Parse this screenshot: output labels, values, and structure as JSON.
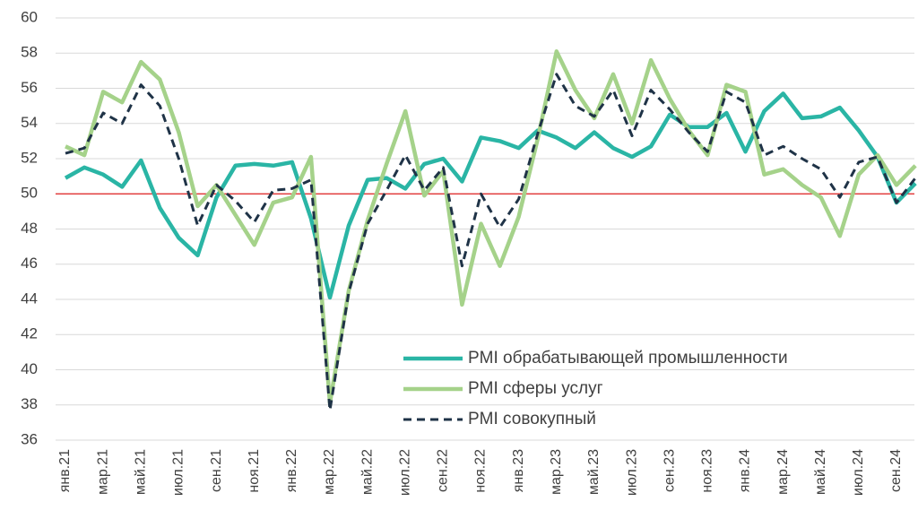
{
  "chart_data": {
    "type": "line",
    "categories": [
      "янв.21",
      null,
      "мар.21",
      null,
      "май.21",
      null,
      "июл.21",
      null,
      "сен.21",
      null,
      "ноя.21",
      null,
      "янв.22",
      null,
      "мар.22",
      null,
      "май.22",
      null,
      "июл.22",
      null,
      "сен.22",
      null,
      "ноя.22",
      null,
      "янв.23",
      null,
      "мар.23",
      null,
      "май.23",
      null,
      "июл.23",
      null,
      "сен.23",
      null,
      "ноя.23",
      null,
      "янв.24",
      null,
      "мар.24",
      null,
      "май.24",
      null,
      "июл.24",
      null,
      "сен.24",
      null
    ],
    "series": [
      {
        "name": "PMI обрабатывающей промышленности",
        "color": "#2ab5a5",
        "dash": false,
        "values": [
          50.9,
          51.5,
          51.1,
          50.4,
          51.9,
          49.2,
          47.5,
          46.5,
          49.8,
          51.6,
          51.7,
          51.6,
          51.8,
          48.6,
          44.1,
          48.2,
          50.8,
          50.9,
          50.3,
          51.7,
          52.0,
          50.7,
          53.2,
          53.0,
          52.6,
          53.6,
          53.2,
          52.6,
          53.5,
          52.6,
          52.1,
          52.7,
          54.5,
          53.8,
          53.8,
          54.6,
          52.4,
          54.7,
          55.7,
          54.3,
          54.4,
          54.9,
          53.6,
          52.1,
          49.5,
          50.6
        ]
      },
      {
        "name": "PMI сферы услуг",
        "color": "#a5d28a",
        "dash": false,
        "values": [
          52.7,
          52.2,
          55.8,
          55.2,
          57.5,
          56.5,
          53.5,
          49.3,
          50.5,
          48.8,
          47.1,
          49.5,
          49.8,
          52.1,
          38.1,
          44.5,
          48.5,
          51.7,
          54.7,
          49.9,
          51.3,
          43.7,
          48.3,
          45.9,
          48.7,
          53.1,
          58.1,
          55.9,
          54.3,
          56.8,
          54.0,
          57.6,
          55.4,
          53.6,
          52.2,
          56.2,
          55.8,
          51.1,
          51.4,
          50.5,
          49.8,
          47.6,
          51.1,
          52.2,
          50.5,
          51.6
        ]
      },
      {
        "name": "PMI совокупный",
        "color": "#1f3347",
        "dash": true,
        "values": [
          52.3,
          52.6,
          54.6,
          54.0,
          56.2,
          55.0,
          52.0,
          48.2,
          50.5,
          49.6,
          48.4,
          50.2,
          50.3,
          50.8,
          37.7,
          44.4,
          48.3,
          50.2,
          52.2,
          50.2,
          51.5,
          45.9,
          50.0,
          48.1,
          49.7,
          53.4,
          56.8,
          55.0,
          54.4,
          55.9,
          53.3,
          55.9,
          54.8,
          53.5,
          52.4,
          55.8,
          55.2,
          52.2,
          52.7,
          52.0,
          51.4,
          49.8,
          51.8,
          52.1,
          49.5,
          50.9
        ]
      }
    ],
    "ylim": [
      36,
      60
    ],
    "yticks": [
      36,
      38,
      40,
      42,
      44,
      46,
      48,
      50,
      52,
      54,
      56,
      58,
      60
    ],
    "grid": true,
    "reference_line": 50,
    "reference_color": "#e02020",
    "legend": "lower right"
  }
}
